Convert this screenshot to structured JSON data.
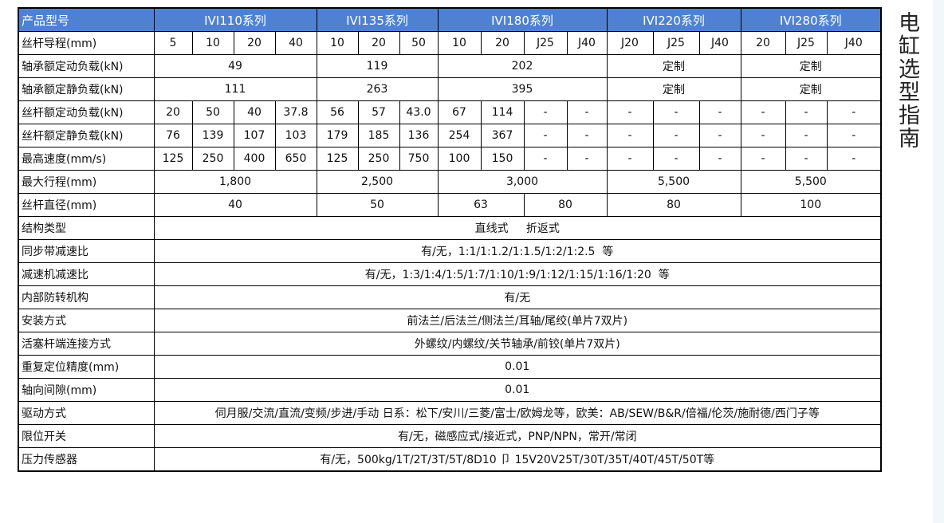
{
  "side_title": "电缸选型指南",
  "table": {
    "header": {
      "label": "产品型号",
      "series": [
        "IVI110系列",
        "IVI135系列",
        "IVI180系列",
        "IVI220系列",
        "IVI280系列"
      ]
    },
    "rows": [
      {
        "label": "丝杆导程(mm)",
        "cells": [
          "5",
          "10",
          "20",
          "40",
          "10",
          "20",
          "50",
          "10",
          "20",
          "J25",
          "J40",
          "J20",
          "J25",
          "J40",
          "20",
          "J25",
          "J40"
        ]
      },
      {
        "label": "轴承额定动负载(kN)",
        "cells": [
          "49",
          "119",
          "202",
          "定制",
          "定制"
        ]
      },
      {
        "label": "轴承额定静负载(kN)",
        "cells": [
          "111",
          "263",
          "395",
          "定制",
          "定制"
        ]
      },
      {
        "label": "丝杆额定动负载(kN)",
        "cells": [
          "20",
          "50",
          "40",
          "37.8",
          "56",
          "57",
          "43.0",
          "67",
          "114",
          "-",
          "-",
          "-",
          "-",
          "-",
          "-",
          "-",
          "-"
        ]
      },
      {
        "label": "丝杆额定静负载(kN)",
        "cells": [
          "76",
          "139",
          "107",
          "103",
          "179",
          "185",
          "136",
          "254",
          "367",
          "-",
          "-",
          "-",
          "-",
          "-",
          "-",
          "-",
          "-"
        ]
      },
      {
        "label": "最高速度(mm/s)",
        "cells": [
          "125",
          "250",
          "400",
          "650",
          "125",
          "250",
          "750",
          "100",
          "150",
          "-",
          "-",
          "-",
          "-",
          "-",
          "-",
          "-",
          "-"
        ]
      },
      {
        "label": "最大行程(mm)",
        "cells": [
          "1,800",
          "2,500",
          "3,000",
          "5,500",
          "5,500"
        ]
      },
      {
        "label": "丝杆直径(mm)",
        "cells": [
          "40",
          "50",
          "63",
          "80",
          "80",
          "100"
        ]
      },
      {
        "label": "结构类型",
        "cells": [
          "直线式     折返式"
        ]
      },
      {
        "label": "同步带减速比",
        "cells": [
          "有/无，1:1/1:1.2/1:1.5/1:2/1:2.5  等"
        ]
      },
      {
        "label": "减速机减速比",
        "cells": [
          "有/无，1:3/1:4/1:5/1:7/1:10/1:9/1:12/1:15/1:16/1:20  等"
        ]
      },
      {
        "label": "内部防转机构",
        "cells": [
          "有/无"
        ]
      },
      {
        "label": "安装方式",
        "cells": [
          "前法兰/后法兰/侧法兰/耳轴/尾绞(单片7双片)"
        ]
      },
      {
        "label": "活塞杆端连接方式",
        "cells": [
          "外螺纹/内螺纹/关节轴承/前铰(单片7双片)"
        ]
      },
      {
        "label": "重复定位精度(mm)",
        "cells": [
          "0.01"
        ]
      },
      {
        "label": "轴向间隙(mm)",
        "cells": [
          "0.01"
        ]
      },
      {
        "label": "驱动方式",
        "cells": [
          "伺月服/交流/直流/变频/步进/手动 日系：松下/安川/三菱/富士/欧姆龙等，欧美：AB/SEW/B&R/倍福/伦茨/施耐德/西门子等"
        ]
      },
      {
        "label": "限位开关",
        "cells": [
          "有/无，磁感应式/接近式，PNP/NPN，常开/常闭"
        ]
      },
      {
        "label": "压力传感器",
        "cells": [
          "有/无，500kg/1T/2T/3T/5T/8D10 卩 15V20V25T/30T/35T/40T/45T/50T等"
        ]
      }
    ]
  }
}
